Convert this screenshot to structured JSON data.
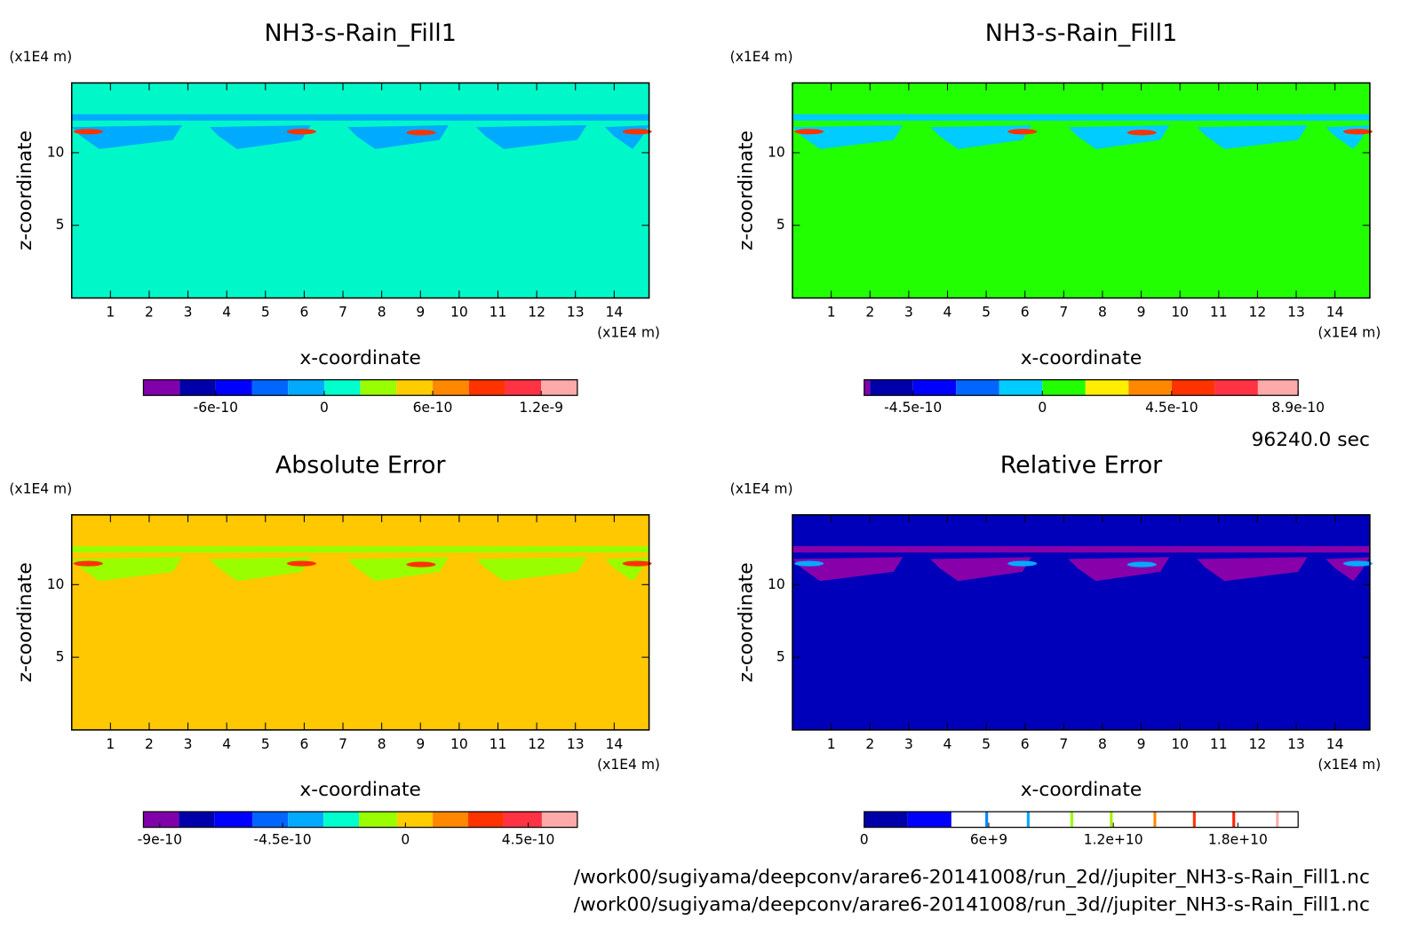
{
  "chart_data": [
    {
      "type": "contour",
      "title": "NH3-s-Rain_Fill1",
      "xlabel": "x-coordinate",
      "ylabel": "z-coordinate",
      "xunit": "(x1E4 m)",
      "yunit": "(x1E4 m)",
      "xlim": [
        0,
        14.9
      ],
      "ylim": [
        0,
        14.8
      ],
      "xticks": [
        1,
        2,
        3,
        4,
        5,
        6,
        7,
        8,
        9,
        10,
        11,
        12,
        13,
        14
      ],
      "yticks": [
        5,
        10
      ],
      "field_color": "#00f8c8",
      "feature_colors": [
        "#00aaff",
        "#ff3300"
      ],
      "colorbar": {
        "levels": [
          -1e-09,
          -8e-10,
          -6e-10,
          -4e-10,
          -2e-10,
          0,
          2e-10,
          4e-10,
          6e-10,
          8e-10,
          1e-09,
          1.2e-09,
          1.4e-09
        ],
        "colors": [
          "#8000aa",
          "#0000aa",
          "#0000ff",
          "#0066ff",
          "#00aaff",
          "#00ffcc",
          "#99ff00",
          "#ffcc00",
          "#ff8800",
          "#ff3300",
          "#ff3344",
          "#ffaaaa"
        ],
        "ticks": [
          -6e-10,
          0,
          6e-10,
          1.2e-09
        ]
      }
    },
    {
      "type": "contour",
      "title": "NH3-s-Rain_Fill1",
      "xlabel": "x-coordinate",
      "ylabel": "z-coordinate",
      "xunit": "(x1E4 m)",
      "yunit": "(x1E4 m)",
      "xlim": [
        0,
        14.9
      ],
      "ylim": [
        0,
        14.8
      ],
      "xticks": [
        1,
        2,
        3,
        4,
        5,
        6,
        7,
        8,
        9,
        10,
        11,
        12,
        13,
        14
      ],
      "yticks": [
        5,
        10
      ],
      "field_color": "#22ff00",
      "feature_colors": [
        "#00ccff",
        "#ff3300"
      ],
      "colorbar": {
        "levels": [
          -6.2e-10,
          -6e-10,
          -4.5e-10,
          -3e-10,
          -1.5e-10,
          0,
          1.5e-10,
          3e-10,
          4.5e-10,
          6e-10,
          7.5e-10,
          8.9e-10
        ],
        "colors": [
          "#8000aa",
          "#0000aa",
          "#0000ff",
          "#0066ff",
          "#00ccff",
          "#22ff00",
          "#ffee00",
          "#ff8800",
          "#ff3300",
          "#ff3344",
          "#ffaaaa"
        ],
        "ticks": [
          -4.5e-10,
          0,
          4.5e-10,
          8.9e-10
        ]
      }
    },
    {
      "type": "contour",
      "title": "Absolute Error",
      "xlabel": "x-coordinate",
      "ylabel": "z-coordinate",
      "xunit": "(x1E4 m)",
      "yunit": "(x1E4 m)",
      "xlim": [
        0,
        14.9
      ],
      "ylim": [
        0,
        14.8
      ],
      "xticks": [
        1,
        2,
        3,
        4,
        5,
        6,
        7,
        8,
        9,
        10,
        11,
        12,
        13,
        14
      ],
      "yticks": [
        5,
        10
      ],
      "field_color": "#ffc800",
      "feature_colors": [
        "#99ff00",
        "#ff3300"
      ],
      "colorbar": {
        "levels": [
          -9.6e-10,
          -8.3e-10,
          -7e-10,
          -5.6e-10,
          -4.3e-10,
          -3e-10,
          -1.7e-10,
          -3e-11,
          1e-10,
          2.3e-10,
          3.6e-10,
          5e-10,
          6.3e-10
        ],
        "colors": [
          "#8000aa",
          "#0000aa",
          "#0000ff",
          "#0066ff",
          "#00aaff",
          "#00ffcc",
          "#99ff00",
          "#ffcc00",
          "#ff8800",
          "#ff3300",
          "#ff3344",
          "#ffaaaa"
        ],
        "ticks": [
          -9e-10,
          -4.5e-10,
          0,
          4.5e-10
        ]
      }
    },
    {
      "type": "contour",
      "title": "Relative Error",
      "xlabel": "x-coordinate",
      "ylabel": "z-coordinate",
      "xunit": "(x1E4 m)",
      "yunit": "(x1E4 m)",
      "xlim": [
        0,
        14.9
      ],
      "ylim": [
        0,
        14.8
      ],
      "xticks": [
        1,
        2,
        3,
        4,
        5,
        6,
        7,
        8,
        9,
        10,
        11,
        12,
        13,
        14
      ],
      "yticks": [
        5,
        10
      ],
      "field_color": "#0000bb",
      "feature_colors": [
        "#8800aa",
        "#00aaff"
      ],
      "colorbar": {
        "levels": [
          0,
          2100000000.0,
          4200000000.0,
          20900000000.0
        ],
        "colors": [
          "#0000aa",
          "#0000ff",
          "#ffffff"
        ],
        "contour_lines": [
          {
            "value": 5900000000.0,
            "color": "#0088ff"
          },
          {
            "value": 7900000000.0,
            "color": "#00aaff"
          },
          {
            "value": 10000000000.0,
            "color": "#99ff00"
          },
          {
            "value": 11900000000.0,
            "color": "#aaee00"
          },
          {
            "value": 14000000000.0,
            "color": "#ff8800"
          },
          {
            "value": 15900000000.0,
            "color": "#ff3300"
          },
          {
            "value": 17800000000.0,
            "color": "#ff2200"
          },
          {
            "value": 19900000000.0,
            "color": "#ffaaaa"
          }
        ],
        "ticks": [
          0,
          {
            "value": 6000000000.0,
            "label": "6e+9"
          },
          {
            "value": 12000000000.0,
            "label": "1.2e+10"
          },
          {
            "value": 18000000000.0,
            "label": "1.8e+10"
          }
        ]
      }
    }
  ],
  "annotations": {
    "time": "96240.0 sec",
    "files": [
      "/work00/sugiyama/deepconv/arare6-20141008/run_2d//jupiter_NH3-s-Rain_Fill1.nc",
      "/work00/sugiyama/deepconv/arare6-20141008/run_3d//jupiter_NH3-s-Rain_Fill1.nc"
    ]
  }
}
